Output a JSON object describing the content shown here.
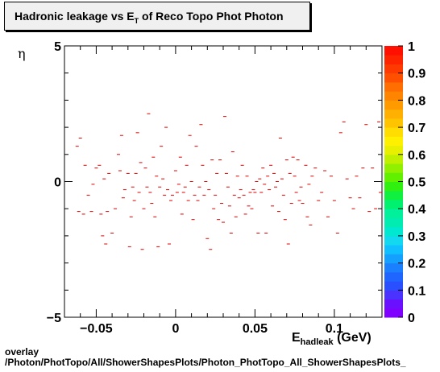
{
  "title": {
    "main": "Hadronic leakage vs E",
    "sub": "T",
    "rest": " of Reco Topo Phot Photon"
  },
  "footer": {
    "line1": "overlay",
    "line2": "/Photon/PhotTopo/All/ShowerShapesPlots/Photon_PhotTopo_All_ShowerShapesPlots_"
  },
  "chart_data": {
    "type": "scatter",
    "title": "Hadronic leakage vs E_T of Reco Topo Phot Photon",
    "xlabel": "E_hadleak (GeV)",
    "ylabel": "η",
    "xlim": [
      -0.07,
      0.13
    ],
    "ylim": [
      -5,
      5
    ],
    "x_ticks": [
      "−0.05",
      "0",
      "0.05",
      "0.1"
    ],
    "y_ticks": [
      "5",
      "0",
      "−5"
    ],
    "colorbar": {
      "min": 0,
      "max": 1,
      "ticks": [
        "0",
        "0.1",
        "0.2",
        "0.3",
        "0.4",
        "0.5",
        "0.6",
        "0.7",
        "0.8",
        "0.9",
        "1"
      ]
    },
    "marker_color": "#dd0000",
    "points": [
      [
        -0.062,
        1.3
      ],
      [
        -0.061,
        -1.1
      ],
      [
        -0.06,
        1.6
      ],
      [
        -0.058,
        -1.2
      ],
      [
        -0.057,
        0.6
      ],
      [
        -0.055,
        -0.5
      ],
      [
        -0.053,
        -1.1
      ],
      [
        -0.052,
        -0.1
      ],
      [
        -0.05,
        0.5
      ],
      [
        -0.048,
        0.6
      ],
      [
        -0.047,
        -1.2
      ],
      [
        -0.046,
        -2.0
      ],
      [
        -0.045,
        0.1
      ],
      [
        -0.044,
        -2.3
      ],
      [
        -0.043,
        -1.1
      ],
      [
        -0.042,
        0.3
      ],
      [
        -0.04,
        -1.9
      ],
      [
        -0.038,
        -1.0
      ],
      [
        -0.036,
        1.0
      ],
      [
        -0.035,
        0.4
      ],
      [
        -0.034,
        1.7
      ],
      [
        -0.033,
        -0.6
      ],
      [
        -0.032,
        -0.3
      ],
      [
        -0.03,
        0.3
      ],
      [
        -0.029,
        -2.4
      ],
      [
        -0.028,
        -1.3
      ],
      [
        -0.027,
        -0.2
      ],
      [
        -0.026,
        -0.7
      ],
      [
        -0.025,
        0.3
      ],
      [
        -0.024,
        1.8
      ],
      [
        -0.023,
        -0.4
      ],
      [
        -0.022,
        0.7
      ],
      [
        -0.021,
        -2.5
      ],
      [
        -0.02,
        -1.0
      ],
      [
        -0.019,
        0.5
      ],
      [
        -0.018,
        -0.2
      ],
      [
        -0.017,
        2.5
      ],
      [
        -0.016,
        -0.4
      ],
      [
        -0.015,
        -0.8
      ],
      [
        -0.014,
        0.9
      ],
      [
        -0.013,
        -1.3
      ],
      [
        -0.012,
        0.2
      ],
      [
        -0.011,
        -2.4
      ],
      [
        -0.01,
        -0.2
      ],
      [
        -0.009,
        1.3
      ],
      [
        -0.008,
        0.1
      ],
      [
        -0.007,
        -0.5
      ],
      [
        -0.006,
        2.0
      ],
      [
        -0.005,
        -0.3
      ],
      [
        -0.004,
        -2.3
      ],
      [
        -0.003,
        -0.7
      ],
      [
        -0.002,
        -0.5
      ],
      [
        0.0,
        0.4
      ],
      [
        0.001,
        -0.4
      ],
      [
        0.002,
        -0.1
      ],
      [
        0.003,
        0.9
      ],
      [
        0.004,
        -1.2
      ],
      [
        0.005,
        -0.4
      ],
      [
        0.006,
        -0.2
      ],
      [
        0.007,
        0.6
      ],
      [
        0.008,
        -0.7
      ],
      [
        0.009,
        1.7
      ],
      [
        0.01,
        0.0
      ],
      [
        0.011,
        -1.4
      ],
      [
        0.012,
        -0.5
      ],
      [
        0.013,
        1.3
      ],
      [
        0.014,
        -0.7
      ],
      [
        0.015,
        -0.2
      ],
      [
        0.016,
        2.1
      ],
      [
        0.017,
        0.6
      ],
      [
        0.018,
        -0.5
      ],
      [
        0.019,
        0.0
      ],
      [
        0.02,
        -2.1
      ],
      [
        0.021,
        -0.3
      ],
      [
        0.022,
        -2.5
      ],
      [
        0.023,
        0.8
      ],
      [
        0.024,
        -1.0
      ],
      [
        0.025,
        -0.5
      ],
      [
        0.026,
        0.3
      ],
      [
        0.027,
        -1.4
      ],
      [
        0.028,
        0.8
      ],
      [
        0.029,
        -0.8
      ],
      [
        0.03,
        -1.5
      ],
      [
        0.031,
        2.4
      ],
      [
        0.032,
        0.3
      ],
      [
        0.033,
        -0.2
      ],
      [
        0.034,
        -0.9
      ],
      [
        0.035,
        -1.9
      ],
      [
        0.036,
        1.1
      ],
      [
        0.037,
        -0.5
      ],
      [
        0.038,
        -1.3
      ],
      [
        0.039,
        0.2
      ],
      [
        0.04,
        -0.6
      ],
      [
        0.041,
        -0.3
      ],
      [
        0.042,
        0.6
      ],
      [
        0.043,
        -0.5
      ],
      [
        0.044,
        -1.2
      ],
      [
        0.045,
        0.2
      ],
      [
        0.046,
        -0.9
      ],
      [
        0.047,
        -0.4
      ],
      [
        0.048,
        -1.0
      ],
      [
        0.049,
        -0.3
      ],
      [
        0.05,
        -0.4
      ],
      [
        0.051,
        0.0
      ],
      [
        0.052,
        -1.9
      ],
      [
        0.053,
        0.1
      ],
      [
        0.054,
        -0.4
      ],
      [
        0.055,
        0.5
      ],
      [
        0.056,
        -0.1
      ],
      [
        0.057,
        -1.9
      ],
      [
        0.058,
        0.2
      ],
      [
        0.059,
        -0.3
      ],
      [
        0.06,
        0.6
      ],
      [
        0.061,
        -0.9
      ],
      [
        0.062,
        0.3
      ],
      [
        0.063,
        -0.2
      ],
      [
        0.064,
        0.0
      ],
      [
        0.065,
        -1.1
      ],
      [
        0.066,
        1.6
      ],
      [
        0.067,
        0.1
      ],
      [
        0.068,
        -0.5
      ],
      [
        0.069,
        -1.4
      ],
      [
        0.07,
        0.8
      ],
      [
        0.071,
        -2.3
      ],
      [
        0.072,
        0.3
      ],
      [
        0.073,
        -0.8
      ],
      [
        0.074,
        0.9
      ],
      [
        0.075,
        0.2
      ],
      [
        0.076,
        -0.4
      ],
      [
        0.077,
        0.8
      ],
      [
        0.078,
        -0.7
      ],
      [
        0.079,
        -0.2
      ],
      [
        0.08,
        -0.8
      ],
      [
        0.082,
        0.6
      ],
      [
        0.083,
        -1.3
      ],
      [
        0.084,
        -0.1
      ],
      [
        0.085,
        -1.6
      ],
      [
        0.086,
        0.2
      ],
      [
        0.088,
        0.5
      ],
      [
        0.09,
        -0.7
      ],
      [
        0.092,
        -0.4
      ],
      [
        0.094,
        0.4
      ],
      [
        0.096,
        -1.3
      ],
      [
        0.098,
        0.2
      ],
      [
        0.1,
        -0.7
      ],
      [
        0.102,
        -1.9
      ],
      [
        0.104,
        1.8
      ],
      [
        0.106,
        2.2
      ],
      [
        0.108,
        0.1
      ],
      [
        0.11,
        -0.6
      ],
      [
        0.112,
        -1.0
      ],
      [
        0.114,
        0.2
      ],
      [
        0.116,
        -0.6
      ],
      [
        0.118,
        0.5
      ],
      [
        0.12,
        2.1
      ],
      [
        0.122,
        -1.1
      ],
      [
        0.124,
        0.5
      ],
      [
        0.126,
        -1.0
      ],
      [
        0.128,
        2.2
      ],
      [
        0.129,
        -0.4
      ]
    ]
  }
}
